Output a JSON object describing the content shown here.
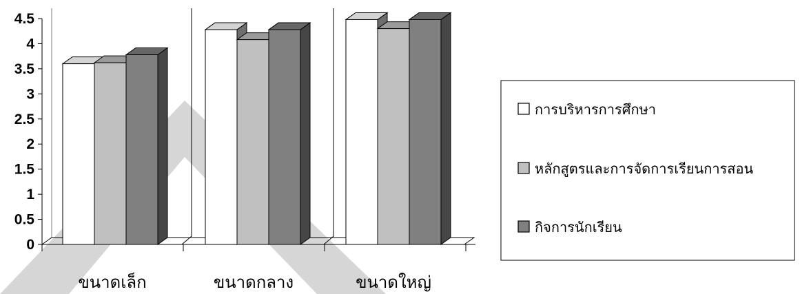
{
  "chart_data": {
    "type": "bar",
    "categories": [
      "ขนาดเล็ก",
      "ขนาดกลาง",
      "ขนาดใหญ่"
    ],
    "series": [
      {
        "name": "การบริหารการศึกษา",
        "values": [
          3.6,
          4.28,
          4.48
        ],
        "color": "#ffffff"
      },
      {
        "name": "หลักสูตรและการจัดการเรียนการสอน",
        "values": [
          3.62,
          4.08,
          4.3
        ],
        "color": "#c0c0c0"
      },
      {
        "name": "กิจการนักเรียน",
        "values": [
          3.78,
          4.28,
          4.48
        ],
        "color": "#808080"
      }
    ],
    "ylim": [
      0,
      4.5
    ],
    "yticks": [
      "0",
      "0.5",
      "1",
      "1.5",
      "2",
      "2.5",
      "3",
      "3.5",
      "4",
      "4.5"
    ],
    "grid": false,
    "legend_position": "right",
    "style": "3d-clustered-column"
  }
}
